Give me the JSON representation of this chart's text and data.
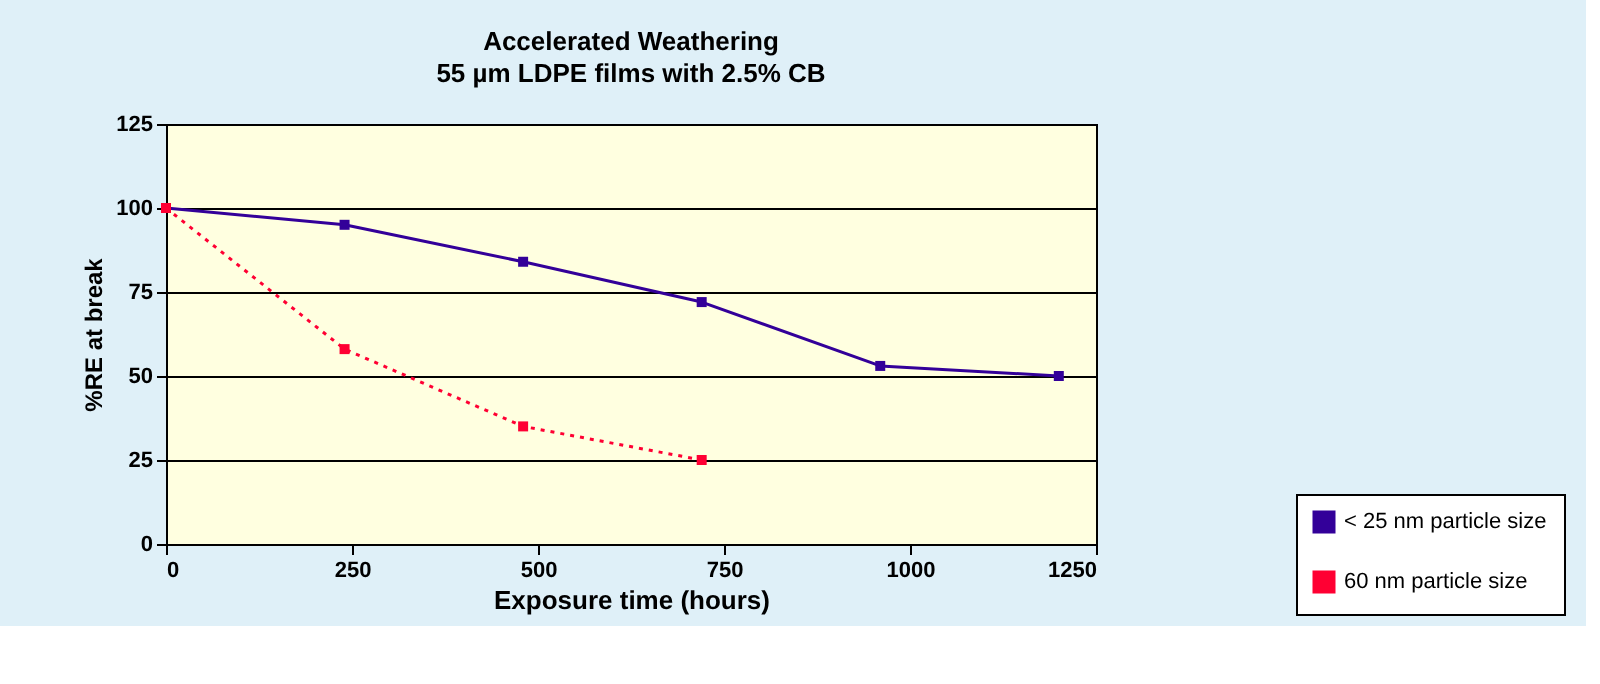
{
  "chart_data": {
    "type": "line",
    "title": "Accelerated Weathering",
    "subtitle": "55 µm LDPE films with 2.5% CB",
    "xlabel": "Exposure time (hours)",
    "ylabel": "%RE at break",
    "xlim": [
      0,
      1250
    ],
    "xticks": [
      0,
      250,
      500,
      750,
      1000,
      1250
    ],
    "ylim": [
      0,
      125
    ],
    "yticks": [
      0,
      25,
      50,
      75,
      100,
      125
    ],
    "grid": "y",
    "legend": "bottom right",
    "marker": "square",
    "series": [
      {
        "name": "< 25 nm particle size",
        "color": "#330099",
        "line_style": "solid",
        "x": [
          0,
          240,
          480,
          720,
          960,
          1200
        ],
        "values": [
          100,
          95,
          84,
          72,
          53,
          50
        ]
      },
      {
        "name": "60 nm particle size",
        "color": "#ff0033",
        "line_style": "dotted",
        "x": [
          0,
          240,
          480,
          720
        ],
        "values": [
          100,
          58,
          35,
          25
        ]
      }
    ]
  }
}
